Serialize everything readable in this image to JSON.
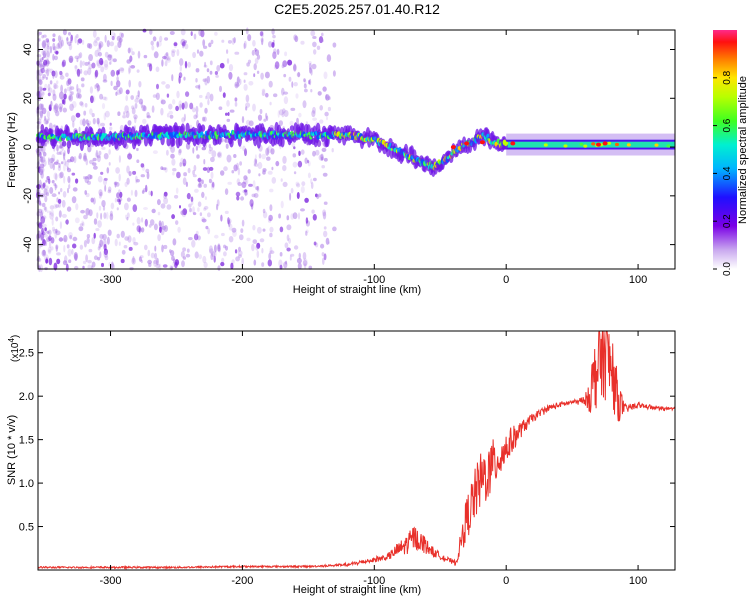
{
  "figure": {
    "title": "C2E5.2025.257.01.40.R12"
  },
  "chart_data": [
    {
      "type": "heatmap",
      "name": "spectrogram",
      "title": "C2E5.2025.257.01.40.R12",
      "xlabel": "Height of straight line (km)",
      "ylabel": "Frequency (Hz)",
      "xlim": [
        -355,
        128
      ],
      "ylim": [
        -50,
        48
      ],
      "xticks": [
        -300,
        -200,
        -100,
        0,
        100
      ],
      "yticks": [
        -40,
        -20,
        0,
        20,
        40
      ],
      "ridge": {
        "description_points_x": [
          -355,
          -300,
          -250,
          -200,
          -150,
          -120,
          -100,
          -80,
          -65,
          -55,
          -45,
          -35,
          -25,
          -18,
          -10,
          0,
          50,
          100,
          128
        ],
        "frequency": [
          4,
          4,
          5,
          5,
          5,
          5,
          3,
          -2,
          -6,
          -8,
          -5,
          0,
          2,
          5,
          2,
          1,
          1,
          1,
          1
        ]
      },
      "colorbar": {
        "label": "Normalized spectral amplitude",
        "range": [
          0.0,
          1.0
        ],
        "ticks": [
          0.0,
          0.2,
          0.4,
          0.6,
          0.8
        ],
        "tick_labels": [
          "0.0",
          "0.2",
          "0.4",
          "0.6",
          "0.8"
        ]
      }
    },
    {
      "type": "line",
      "name": "snr",
      "xlabel": "Height of straight line (km)",
      "ylabel": "SNR (10 * v/v)",
      "multiplier_label": "(x10",
      "multiplier_exp": "4",
      "multiplier_close": ")",
      "xlim": [
        -355,
        128
      ],
      "ylim": [
        0,
        2.75
      ],
      "xticks": [
        -300,
        -200,
        -100,
        0,
        100
      ],
      "yticks": [
        0.5,
        1.0,
        1.5,
        2.0,
        2.5
      ],
      "ytick_labels": [
        "0.5",
        "1.0",
        "1.5",
        "2.0",
        "2.5"
      ],
      "series": [
        {
          "name": "SNR",
          "color": "#e8302a",
          "x": [
            -355,
            -300,
            -250,
            -200,
            -150,
            -120,
            -100,
            -90,
            -75,
            -70,
            -62,
            -55,
            -45,
            -38,
            -30,
            -20,
            -10,
            0,
            10,
            20,
            30,
            40,
            50,
            60,
            65,
            70,
            75,
            80,
            85,
            90,
            100,
            110,
            128
          ],
          "y": [
            0.03,
            0.03,
            0.03,
            0.04,
            0.04,
            0.06,
            0.12,
            0.15,
            0.3,
            0.38,
            0.3,
            0.2,
            0.12,
            0.08,
            0.6,
            1.0,
            1.2,
            1.4,
            1.6,
            1.75,
            1.85,
            1.9,
            1.93,
            1.95,
            2.1,
            2.4,
            2.5,
            2.3,
            1.95,
            1.85,
            1.9,
            1.87,
            1.85
          ],
          "noise": [
            0,
            0,
            0,
            0,
            0,
            0.01,
            0.03,
            0.04,
            0.12,
            0.15,
            0.1,
            0.05,
            0.03,
            0.02,
            0.25,
            0.35,
            0.3,
            0.2,
            0.1,
            0.05,
            0.04,
            0.03,
            0.02,
            0.05,
            0.35,
            0.5,
            0.55,
            0.45,
            0.25,
            0.05,
            0.03,
            0.02,
            0.02
          ]
        }
      ]
    }
  ],
  "colors": {
    "axis": "#000000",
    "line": "#e8302a"
  }
}
